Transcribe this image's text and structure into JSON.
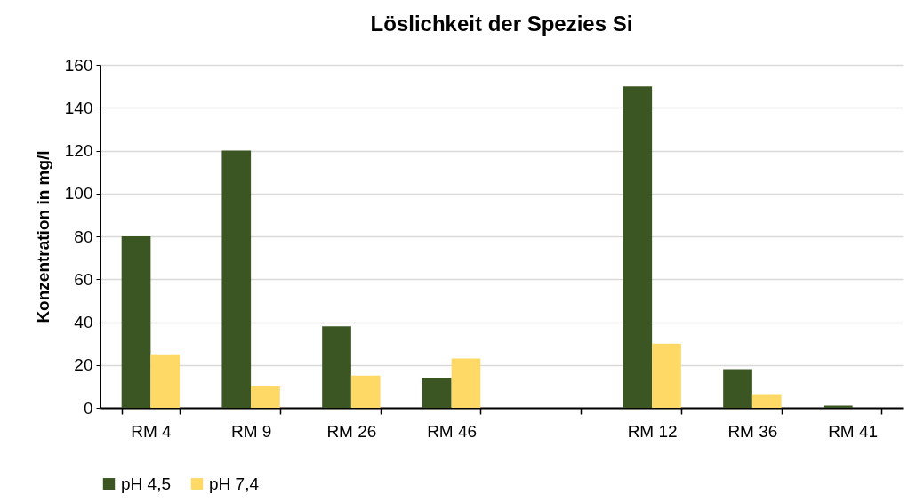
{
  "chart_data": {
    "type": "bar",
    "title": "Löslichkeit der Spezies Si",
    "ylabel": "Konzentration in mg/l",
    "categories": [
      "RM 4",
      "RM 9",
      "RM 26",
      "RM 46",
      null,
      "RM 12",
      "RM 36",
      "RM 41"
    ],
    "series": [
      {
        "name": "pH 4,5",
        "color": "#3b5623",
        "values": [
          80,
          120,
          38,
          14,
          null,
          150,
          18,
          1
        ]
      },
      {
        "name": "pH 7,4",
        "color": "#ffd966",
        "values": [
          25,
          10,
          15,
          23,
          null,
          30,
          6,
          0
        ]
      }
    ],
    "ylim": [
      0,
      160
    ],
    "yticks": [
      0,
      20,
      40,
      60,
      80,
      100,
      120,
      140,
      160
    ],
    "grid": "y",
    "legend": "bottom"
  }
}
